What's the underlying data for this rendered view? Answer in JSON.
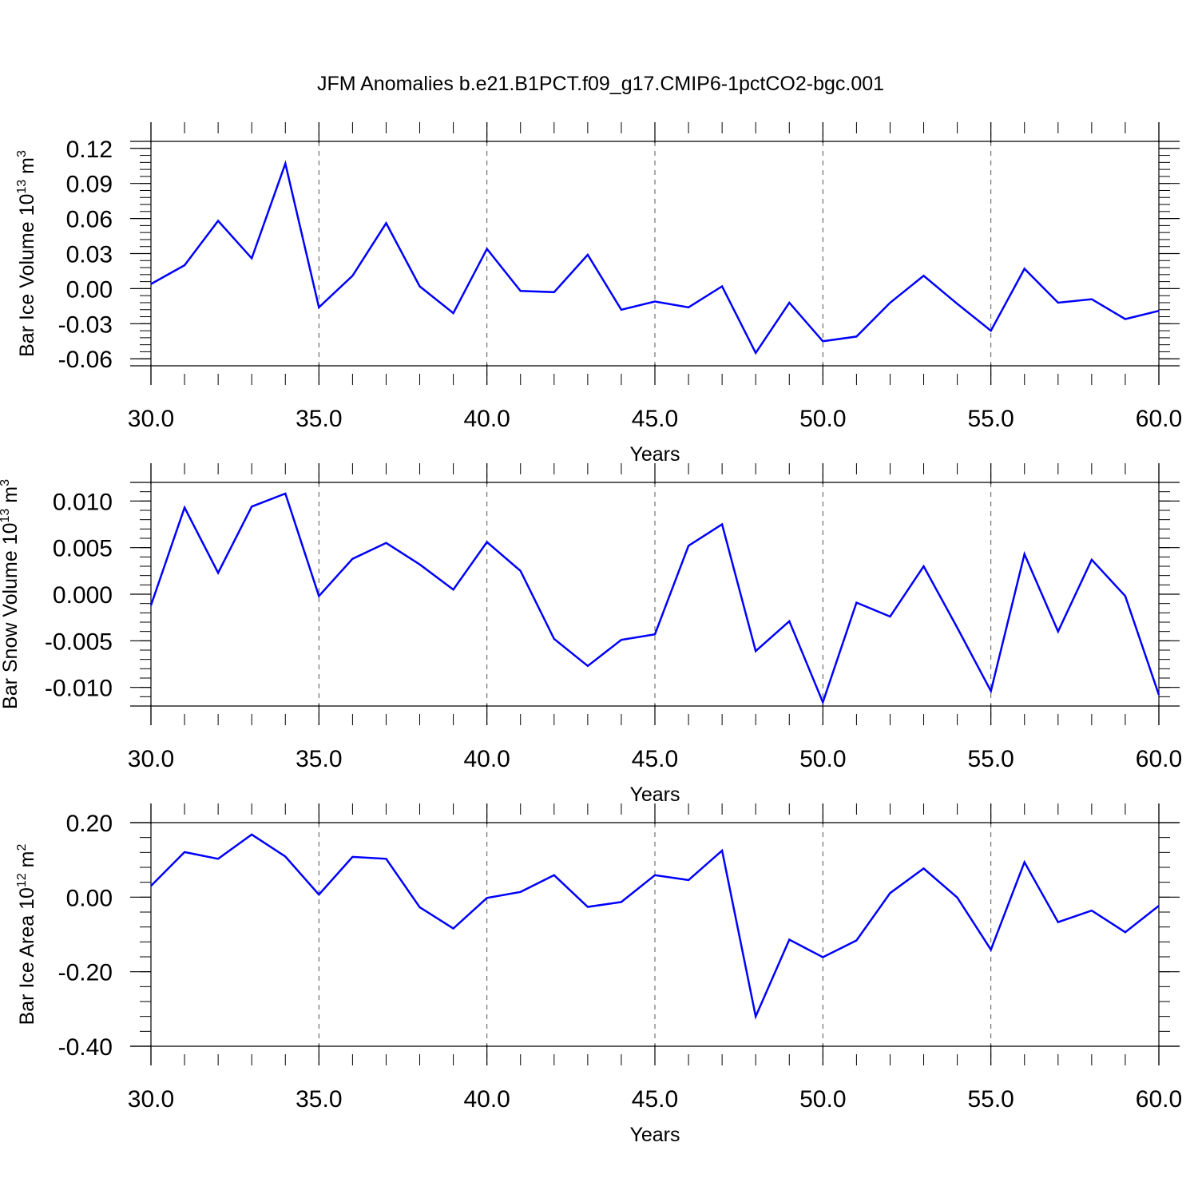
{
  "title": "JFM Anomalies b.e21.B1PCT.f09_g17.CMIP6-1pctCO2-bgc.001",
  "chart_data": [
    {
      "type": "line",
      "ylabel": "Bar Ice Volume 10",
      "ylabel_sup": "13",
      "ylabel_unit": "m",
      "ylabel_unit_sup": "3",
      "xlabel": "Years",
      "xlim": [
        30,
        60
      ],
      "ylim": [
        -0.066,
        0.126
      ],
      "yticks": [
        -0.06,
        -0.03,
        0.0,
        0.03,
        0.06,
        0.09,
        0.12
      ],
      "ytick_labels": [
        "-0.06",
        "-0.03",
        "0.00",
        "0.03",
        "0.06",
        "0.09",
        "0.12"
      ],
      "xticks": [
        30,
        35,
        40,
        45,
        50,
        55,
        60
      ],
      "xtick_labels": [
        "30.0",
        "35.0",
        "40.0",
        "45.0",
        "50.0",
        "55.0",
        "60.0"
      ],
      "color": "#0000ff",
      "x": [
        30,
        31,
        32,
        33,
        34,
        35,
        36,
        37,
        38,
        39,
        40,
        41,
        42,
        43,
        44,
        45,
        46,
        47,
        48,
        49,
        50,
        51,
        52,
        53,
        54,
        55,
        56,
        57,
        58,
        59,
        60
      ],
      "values": [
        0.004,
        0.02,
        0.058,
        0.026,
        0.107,
        -0.016,
        0.011,
        0.056,
        0.002,
        -0.021,
        0.034,
        -0.002,
        -0.003,
        0.029,
        -0.018,
        -0.011,
        -0.016,
        0.002,
        -0.055,
        -0.012,
        -0.045,
        -0.041,
        -0.012,
        0.011,
        -0.013,
        -0.036,
        0.017,
        -0.012,
        -0.009,
        -0.026,
        -0.019
      ]
    },
    {
      "type": "line",
      "ylabel": "Bar Snow Volume 10",
      "ylabel_sup": "13",
      "ylabel_unit": "m",
      "ylabel_unit_sup": "3",
      "xlabel": "Years",
      "xlim": [
        30,
        60
      ],
      "ylim": [
        -0.012,
        0.012
      ],
      "yticks": [
        -0.01,
        -0.005,
        0.0,
        0.005,
        0.01
      ],
      "ytick_labels": [
        "-0.010",
        "-0.005",
        "0.000",
        "0.005",
        "0.010"
      ],
      "xticks": [
        30,
        35,
        40,
        45,
        50,
        55,
        60
      ],
      "xtick_labels": [
        "30.0",
        "35.0",
        "40.0",
        "45.0",
        "50.0",
        "55.0",
        "60.0"
      ],
      "color": "#0000ff",
      "x": [
        30,
        31,
        32,
        33,
        34,
        35,
        36,
        37,
        38,
        39,
        40,
        41,
        42,
        43,
        44,
        45,
        46,
        47,
        48,
        49,
        50,
        51,
        52,
        53,
        54,
        55,
        56,
        57,
        58,
        59,
        60
      ],
      "values": [
        -0.0012,
        0.0093,
        0.0023,
        0.0094,
        0.0108,
        -0.0002,
        0.0038,
        0.0055,
        0.0032,
        0.0005,
        0.0056,
        0.0025,
        -0.0048,
        -0.0077,
        -0.0049,
        -0.0043,
        0.0052,
        0.0075,
        -0.0061,
        -0.0029,
        -0.0116,
        -0.0009,
        -0.0024,
        0.003,
        -0.0036,
        -0.0104,
        0.0043,
        -0.004,
        0.0037,
        -0.0002,
        -0.0108
      ]
    },
    {
      "type": "line",
      "ylabel": "Bar Ice Area 10",
      "ylabel_sup": "12",
      "ylabel_unit": "m",
      "ylabel_unit_sup": "2",
      "xlabel": "Years",
      "xlim": [
        30,
        60
      ],
      "ylim": [
        -0.4,
        0.2
      ],
      "yticks": [
        -0.4,
        -0.2,
        0.0,
        0.2
      ],
      "ytick_labels": [
        "-0.40",
        "-0.20",
        "0.00",
        "0.20"
      ],
      "xticks": [
        30,
        35,
        40,
        45,
        50,
        55,
        60
      ],
      "xtick_labels": [
        "30.0",
        "35.0",
        "40.0",
        "45.0",
        "50.0",
        "55.0",
        "60.0"
      ],
      "color": "#0000ff",
      "x": [
        30,
        31,
        32,
        33,
        34,
        35,
        36,
        37,
        38,
        39,
        40,
        41,
        42,
        43,
        44,
        45,
        46,
        47,
        48,
        49,
        50,
        51,
        52,
        53,
        54,
        55,
        56,
        57,
        58,
        59,
        60
      ],
      "values": [
        0.03,
        0.121,
        0.103,
        0.168,
        0.109,
        0.007,
        0.108,
        0.103,
        -0.027,
        -0.084,
        -0.002,
        0.014,
        0.059,
        -0.026,
        -0.013,
        0.059,
        0.046,
        0.125,
        -0.32,
        -0.114,
        -0.161,
        -0.116,
        0.011,
        0.077,
        -0.001,
        -0.141,
        0.094,
        -0.067,
        -0.036,
        -0.094,
        -0.023
      ]
    }
  ]
}
